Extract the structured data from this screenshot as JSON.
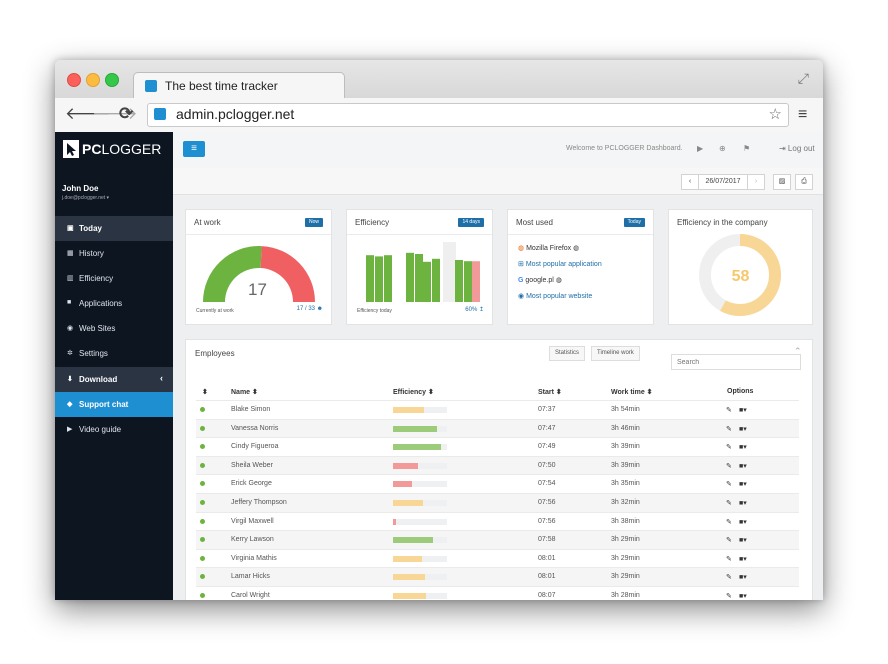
{
  "browser": {
    "tab_title": "The best time tracker",
    "url": "admin.pclogger.net",
    "nav": {
      "back": "🡐",
      "forward": "🡒",
      "reload": "⟳"
    },
    "icons": {
      "star": "☆",
      "menu": "≡",
      "expand": "⤢"
    }
  },
  "brand": {
    "pc": "PC",
    "logger": "LOGGER"
  },
  "user": {
    "name": "John Doe",
    "email": "j.doe@pclogger.net ▾"
  },
  "sidebar": {
    "items": [
      {
        "icon": "▣",
        "label": "Today"
      },
      {
        "icon": "▦",
        "label": "History"
      },
      {
        "icon": "▥",
        "label": "Efficiency"
      },
      {
        "icon": "■",
        "label": "Applications"
      },
      {
        "icon": "◉",
        "label": "Web Sites"
      },
      {
        "icon": "✲",
        "label": "Settings"
      },
      {
        "icon": "⬇",
        "label": "Download",
        "chev": "‹"
      },
      {
        "icon": "◆",
        "label": "Support chat"
      },
      {
        "icon": "▶",
        "label": "Video guide"
      }
    ]
  },
  "topbar": {
    "menu_icon": "≡",
    "welcome": "Welcome to PCLOGGER Dashboard.",
    "play_icon": "▶",
    "globe_icon": "⊕",
    "flag_icon": "⚑",
    "logout_label": "⇥ Log out"
  },
  "datebar": {
    "prev": "‹",
    "date": "26/07/2017",
    "next": "›",
    "pdf": "▨",
    "print": "⎙"
  },
  "cards": {
    "at_work": {
      "title": "At work",
      "badge": "Now",
      "count": "17",
      "footer_left": "Currently at work",
      "footer_right": "17 / 33 ☻",
      "working": 17,
      "total": 33
    },
    "efficiency": {
      "title": "Efficiency",
      "badge": "14 days",
      "footer_left": "Efficiency today",
      "footer_right": "60% ↥"
    },
    "most_used": {
      "title": "Most used",
      "badge": "Today",
      "items": [
        {
          "icon": "◍",
          "text": "Mozilla Firefox ◍"
        },
        {
          "icon": "⊞",
          "text": "Most popular application"
        },
        {
          "icon": "G",
          "text": "google.pl ◍"
        },
        {
          "icon": "◉",
          "text": "Most popular website"
        }
      ]
    },
    "company": {
      "title": "Efficiency in the company",
      "value": "58"
    }
  },
  "efficiency_bars": [
    0.78,
    0.76,
    0.78,
    0,
    0.82,
    0.8,
    0.67,
    0.72,
    1.0,
    0.7,
    0.68,
    0.68
  ],
  "employees": {
    "title": "Employees",
    "btn_stats": "Statistics",
    "btn_timeline": "Timeline work",
    "search_placeholder": "Search",
    "collapse_icon": "⌃",
    "headers": {
      "sort": "⬍",
      "name": "Name ⬍",
      "efficiency": "Efficiency ⬍",
      "start": "Start ⬍",
      "work_time": "Work time ⬍",
      "options": "Options"
    },
    "edit_icon": "✎",
    "video_icon": "■▾",
    "rows": [
      {
        "name": "Blake Simon",
        "eff": 0.58,
        "color": "#f8d796",
        "start": "07:37",
        "time": "3h 54min"
      },
      {
        "name": "Vanessa Norris",
        "eff": 0.82,
        "color": "#9ccc79",
        "start": "07:47",
        "time": "3h 46min"
      },
      {
        "name": "Cindy Figueroa",
        "eff": 0.88,
        "color": "#9ccc79",
        "start": "07:49",
        "time": "3h 39min"
      },
      {
        "name": "Sheila Weber",
        "eff": 0.46,
        "color": "#f29a9a",
        "start": "07:50",
        "time": "3h 39min"
      },
      {
        "name": "Erick George",
        "eff": 0.36,
        "color": "#f29a9a",
        "start": "07:54",
        "time": "3h 35min"
      },
      {
        "name": "Jeffery Thompson",
        "eff": 0.56,
        "color": "#f8d796",
        "start": "07:56",
        "time": "3h 32min"
      },
      {
        "name": "Virgil Maxwell",
        "eff": 0.06,
        "color": "#f29a9a",
        "start": "07:56",
        "time": "3h 38min"
      },
      {
        "name": "Kerry Lawson",
        "eff": 0.74,
        "color": "#9ccc79",
        "start": "07:58",
        "time": "3h 29min"
      },
      {
        "name": "Virginia Mathis",
        "eff": 0.54,
        "color": "#f8d796",
        "start": "08:01",
        "time": "3h 29min"
      },
      {
        "name": "Lamar Hicks",
        "eff": 0.6,
        "color": "#f8d796",
        "start": "08:01",
        "time": "3h 29min"
      },
      {
        "name": "Carol Wright",
        "eff": 0.62,
        "color": "#f8d796",
        "start": "08:07",
        "time": "3h 28min"
      }
    ]
  },
  "colors": {
    "accent": "#1e8fd0",
    "green": "#6cb33f",
    "red": "#f06063",
    "amber": "#f8d796",
    "sidebar": "#0d1521",
    "sidebar_active": "#2a3442"
  }
}
